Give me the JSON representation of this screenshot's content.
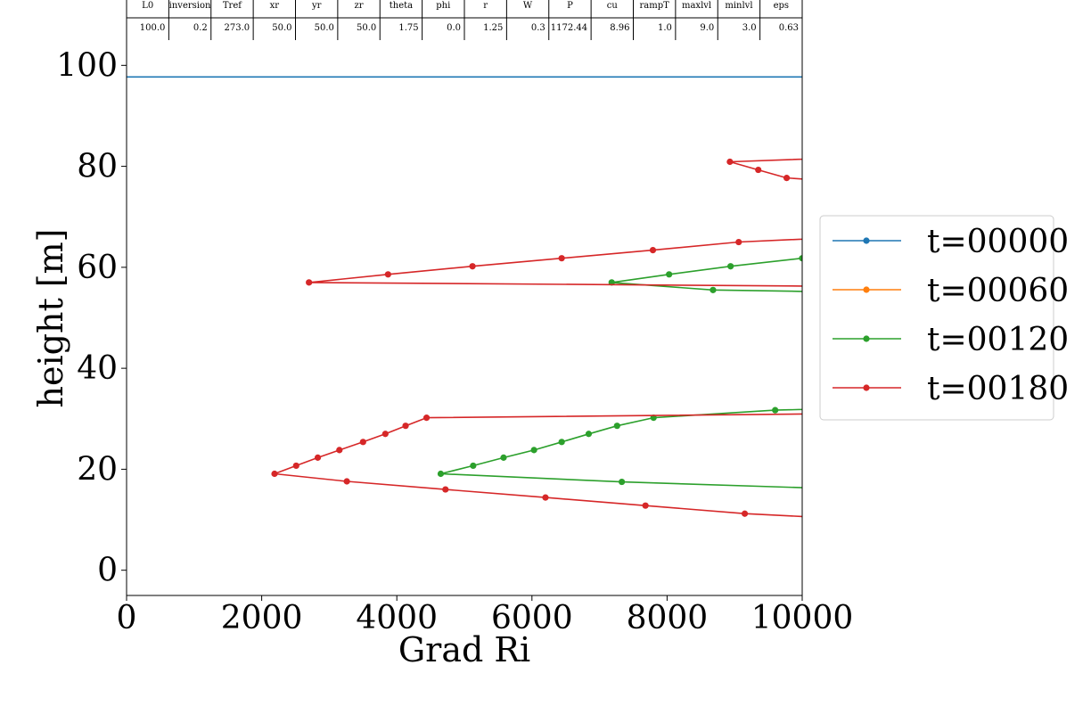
{
  "params_table": {
    "headers": [
      "L0",
      "inversion",
      "Tref",
      "xr",
      "yr",
      "zr",
      "theta",
      "phi",
      "r",
      "W",
      "P",
      "cu",
      "rampT",
      "maxlvl",
      "minlvl",
      "eps"
    ],
    "values": [
      "100.0",
      "0.2",
      "273.0",
      "50.0",
      "50.0",
      "50.0",
      "1.75",
      "0.0",
      "1.25",
      "0.3",
      "1172.44",
      "8.96",
      "1.0",
      "9.0",
      "3.0",
      "0.63"
    ]
  },
  "chart_data": {
    "type": "line",
    "title": "",
    "xlabel": "Grad Ri",
    "ylabel": "height [m]",
    "xlim": [
      0,
      10000
    ],
    "ylim": [
      -5,
      105
    ],
    "xticks": [
      0,
      2000,
      4000,
      6000,
      8000,
      10000
    ],
    "yticks": [
      0,
      20,
      40,
      60,
      80,
      100
    ],
    "grid": false,
    "legend_position": "right",
    "series": [
      {
        "name": "t=00000",
        "color": "#1f77b4",
        "x": [
          0,
          12000
        ],
        "y": [
          97.7,
          97.7
        ],
        "marker_indices": []
      },
      {
        "name": "t=00060",
        "color": "#ff7f0e",
        "x": [],
        "y": [],
        "marker_indices": []
      },
      {
        "name": "t=00120",
        "color": "#2ca02c",
        "x": [
          12000,
          7330,
          4650,
          5130,
          5580,
          6030,
          6440,
          6840,
          7260,
          7800,
          9600,
          12000,
          12000,
          8680,
          7180,
          8030,
          8940,
          10000,
          12000
        ],
        "y": [
          15.5,
          17.5,
          19.1,
          20.7,
          22.3,
          23.8,
          25.4,
          27.0,
          28.6,
          30.2,
          31.7,
          32.5,
          54.8,
          55.5,
          57.0,
          58.6,
          60.2,
          61.8,
          62.5
        ],
        "marker_indices": [
          1,
          2,
          3,
          4,
          5,
          6,
          7,
          8,
          9,
          10,
          13,
          14,
          15,
          16,
          17
        ]
      },
      {
        "name": "t=00180",
        "color": "#d62728",
        "x": [
          12000,
          9150,
          7680,
          6200,
          4720,
          3260,
          2190,
          2510,
          2830,
          3150,
          3500,
          3830,
          4130,
          4440,
          12000,
          12000,
          2700,
          3870,
          5120,
          6440,
          7790,
          9060,
          12000,
          12000,
          9770,
          9350,
          8930,
          12000
        ],
        "y": [
          9.3,
          11.2,
          12.8,
          14.4,
          16.0,
          17.6,
          19.1,
          20.7,
          22.3,
          23.8,
          25.4,
          27.0,
          28.6,
          30.2,
          31.2,
          56.1,
          57.0,
          58.6,
          60.2,
          61.8,
          63.4,
          65.0,
          66.8,
          75.6,
          77.7,
          79.3,
          80.9,
          82.4
        ],
        "marker_indices": [
          1,
          2,
          3,
          4,
          5,
          6,
          7,
          8,
          9,
          10,
          11,
          12,
          13,
          16,
          17,
          18,
          19,
          20,
          21,
          24,
          25,
          26
        ]
      }
    ]
  }
}
